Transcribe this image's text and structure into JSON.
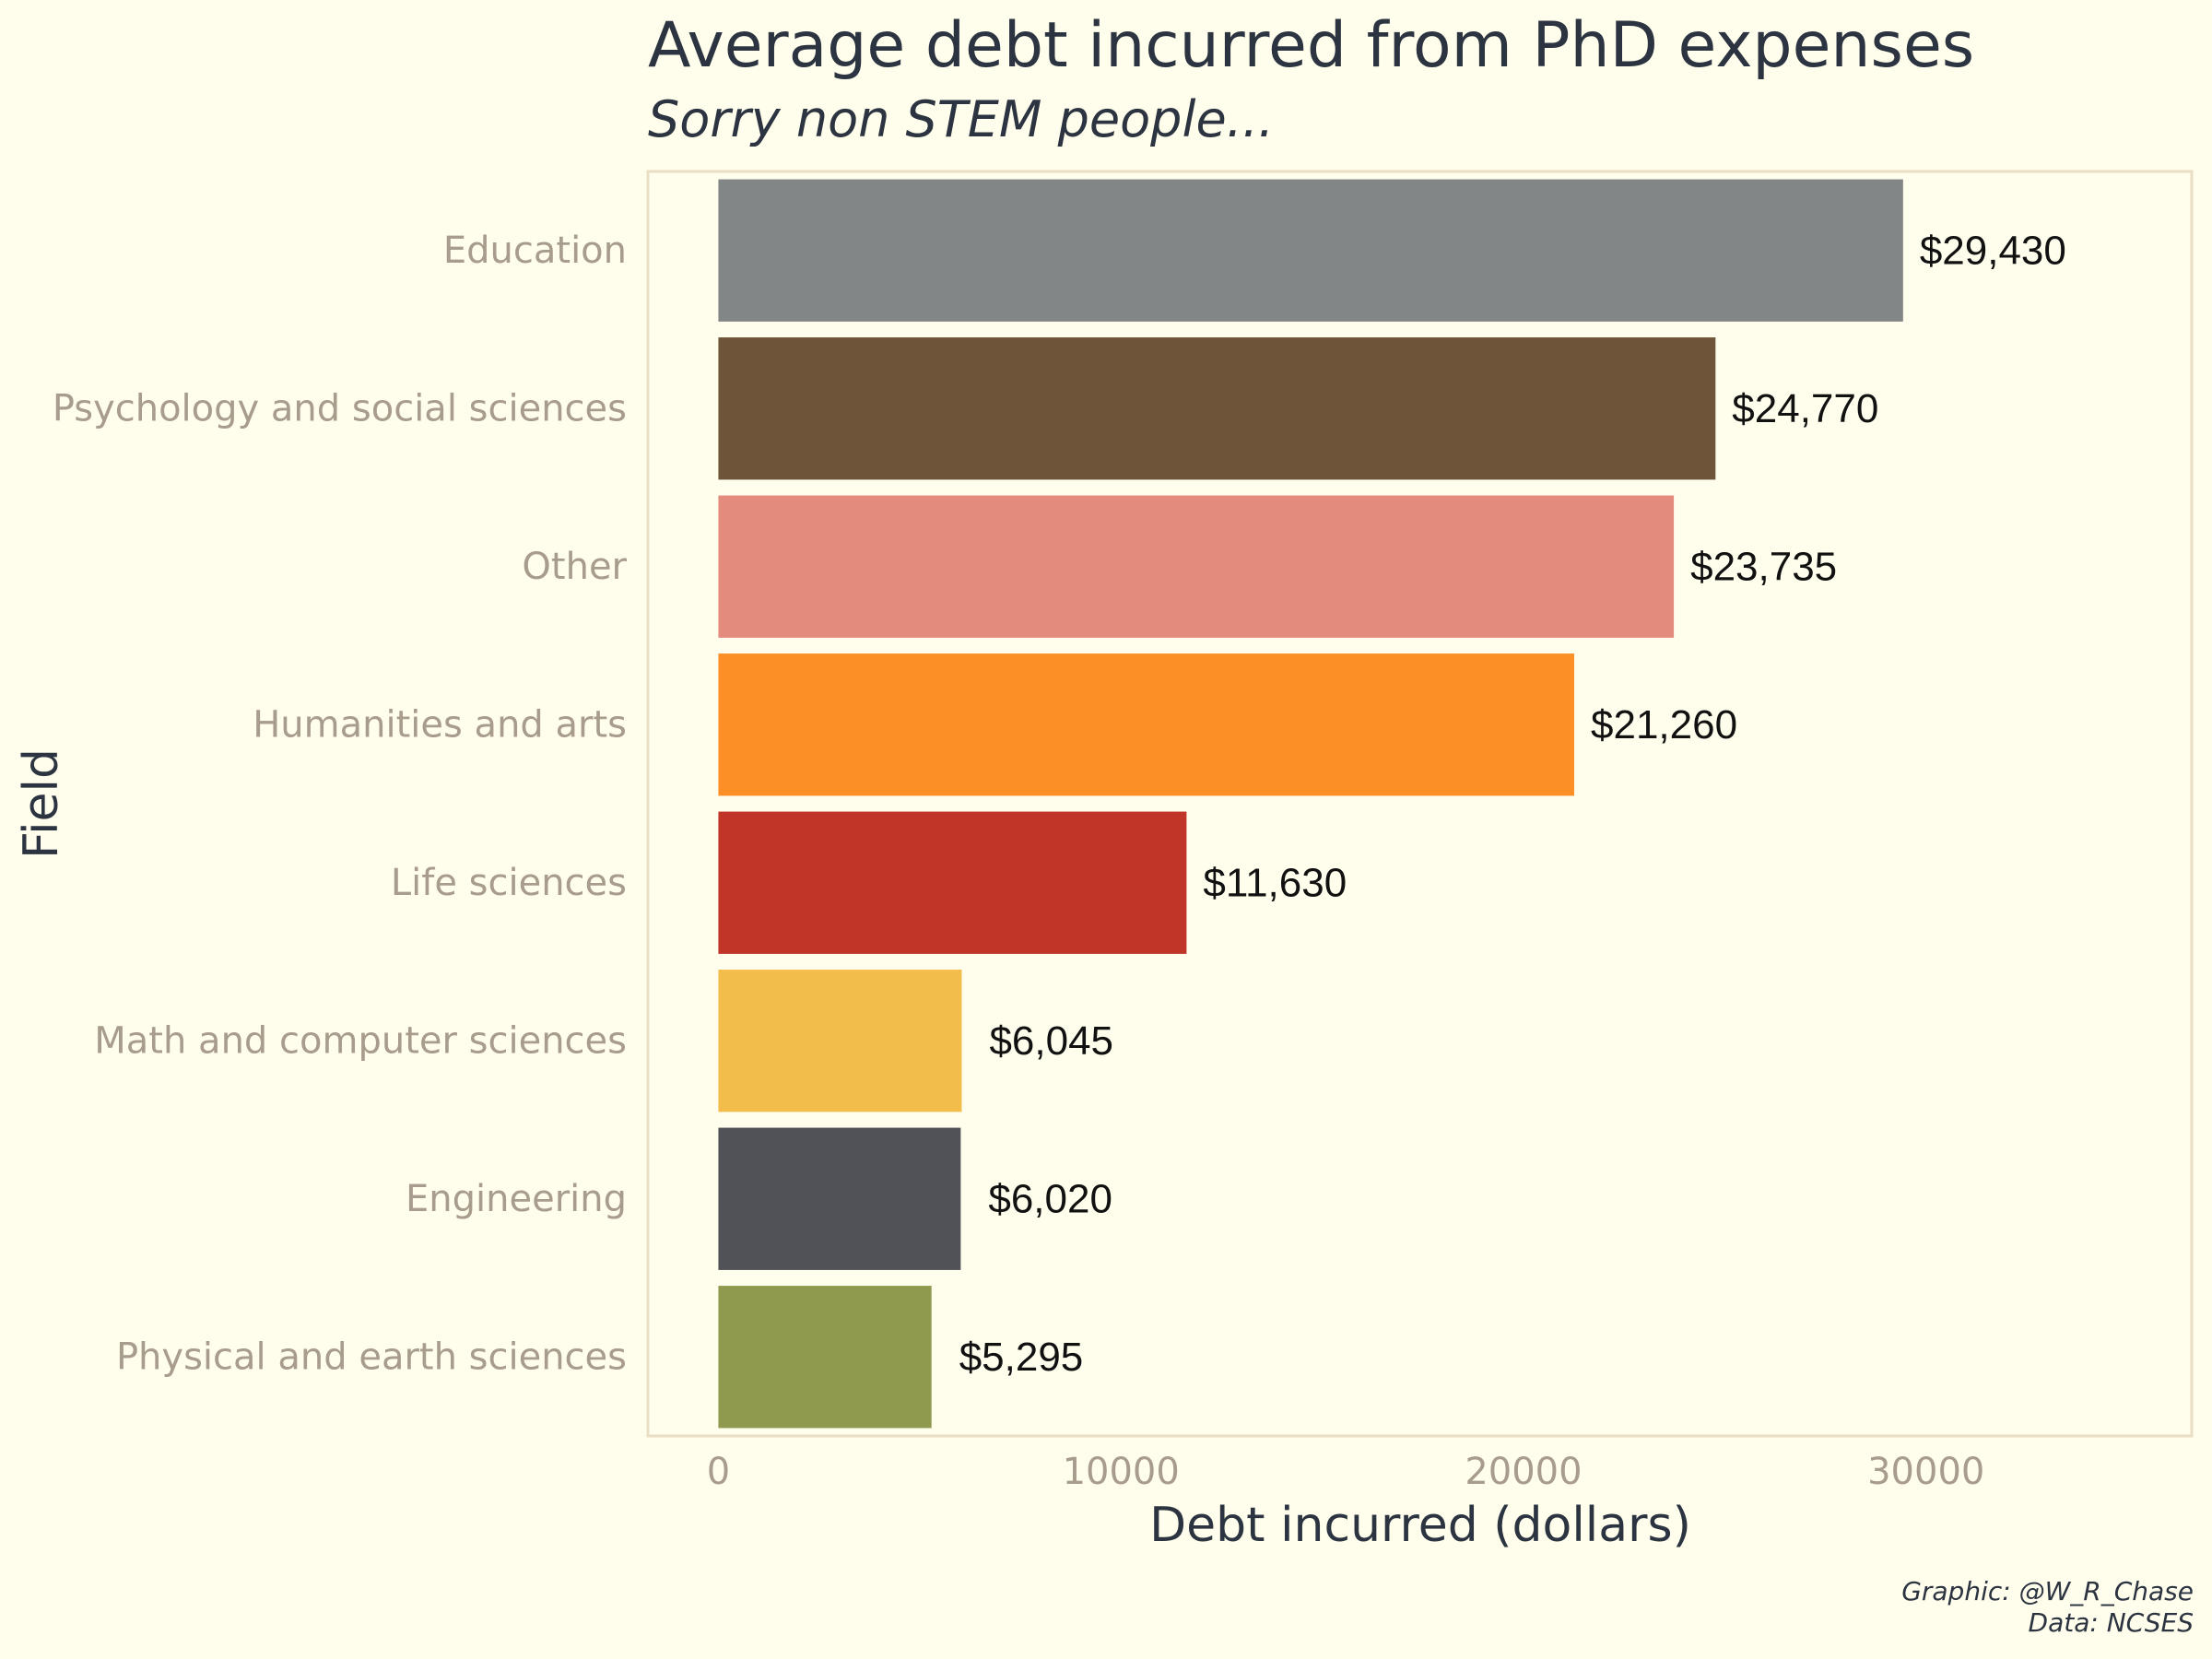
{
  "chart_data": {
    "type": "bar",
    "orientation": "horizontal",
    "title": "Average debt incurred from PhD expenses",
    "subtitle": "Sorry non STEM people...",
    "xlabel": "Debt incurred (dollars)",
    "ylabel": "Field",
    "categories": [
      "Education",
      "Psychology and social sciences",
      "Other",
      "Humanities and arts",
      "Life sciences",
      "Math and computer sciences",
      "Engineering",
      "Physical and earth sciences"
    ],
    "values": [
      29430,
      24770,
      23735,
      21260,
      11630,
      6045,
      6020,
      5295
    ],
    "value_labels": [
      "$29,430",
      "$24,770",
      "$23,735",
      "$21,260",
      "$11,630",
      "$6,045",
      "$6,020",
      "$5,295"
    ],
    "colors": [
      "#838686",
      "#6e5438",
      "#e38b7d",
      "#fd8f27",
      "#c03527",
      "#f2bd4b",
      "#515258",
      "#909a4e"
    ],
    "xticks": [
      0,
      10000,
      20000,
      30000
    ],
    "xtick_labels": [
      "0",
      "10000",
      "20000",
      "30000"
    ],
    "xlim": [
      -1750,
      36600
    ],
    "grid": false,
    "legend": "none",
    "background_color": "#fffdec",
    "panel_border_color": "#e8dfc4"
  },
  "caption": {
    "line1": "Graphic: @W_R_Chase",
    "line2": "Data: NCSES"
  }
}
